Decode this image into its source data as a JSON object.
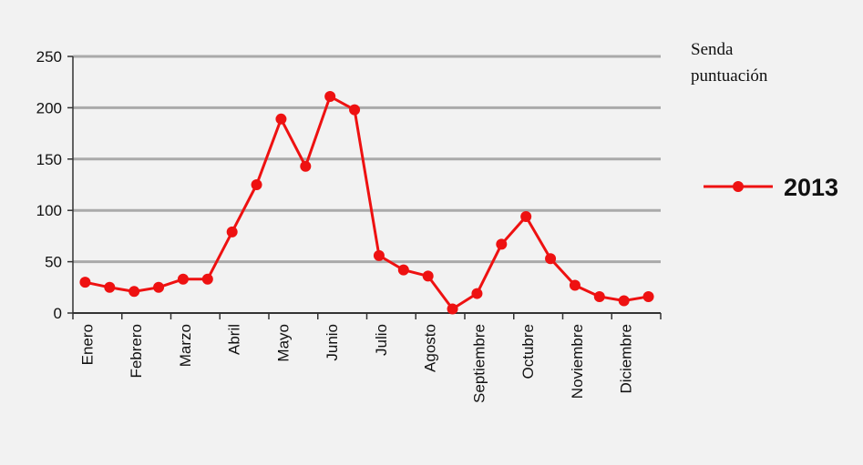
{
  "chart_data": {
    "type": "line",
    "annotation": [
      "Senda",
      "puntuación"
    ],
    "categories": [
      "Enero",
      null,
      "Febrero",
      null,
      "Marzo",
      null,
      "Abril",
      null,
      "Mayo",
      null,
      "Junio",
      null,
      "Julio",
      null,
      "Agosto",
      null,
      "Septiembre",
      null,
      "Octubre",
      null,
      "Noviembre",
      null,
      "Diciembre",
      null
    ],
    "series": [
      {
        "name": "2013",
        "color": "#ee1111",
        "values": [
          30,
          25,
          21,
          25,
          33,
          33,
          79,
          125,
          189,
          143,
          211,
          198,
          56,
          42,
          36,
          4,
          19,
          67,
          94,
          53,
          27,
          16,
          12,
          16
        ]
      }
    ],
    "ylim": [
      0,
      250
    ],
    "yticks": [
      0,
      50,
      100,
      150,
      200,
      250
    ],
    "grid": true,
    "legend": "right"
  }
}
